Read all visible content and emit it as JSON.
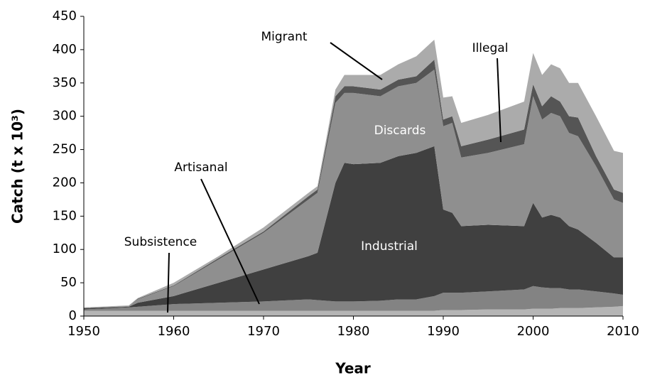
{
  "chart_data": {
    "type": "stacked_area",
    "x_label": "Year",
    "y_label": "Catch (t x 10³)",
    "x": [
      1950,
      1955,
      1956,
      1960,
      1965,
      1970,
      1975,
      1976,
      1978,
      1979,
      1980,
      1983,
      1985,
      1987,
      1989,
      1990,
      1991,
      1992,
      1995,
      1999,
      2000,
      2001,
      2002,
      2003,
      2004,
      2005,
      2007,
      2009,
      2010
    ],
    "series": [
      {
        "name": "Subsistence",
        "color": "#b5b5b5",
        "values": [
          8,
          8,
          8,
          8,
          8,
          8,
          8,
          8,
          8,
          8,
          8,
          8,
          8,
          8,
          8,
          9,
          9,
          9,
          10,
          10,
          11,
          11,
          11,
          12,
          12,
          12,
          13,
          14,
          15
        ]
      },
      {
        "name": "Artisanal",
        "color": "#838383",
        "values": [
          2,
          5,
          6,
          10,
          12,
          14,
          17,
          16,
          14,
          14,
          14,
          15,
          17,
          17,
          22,
          26,
          26,
          26,
          27,
          30,
          34,
          32,
          31,
          30,
          28,
          28,
          24,
          20,
          17
        ]
      },
      {
        "name": "Industrial",
        "color": "#404040",
        "values": [
          2,
          1,
          6,
          12,
          30,
          48,
          65,
          71,
          178,
          208,
          206,
          207,
          215,
          220,
          225,
          125,
          120,
          100,
          100,
          95,
          125,
          105,
          110,
          106,
          95,
          90,
          73,
          54,
          56
        ]
      },
      {
        "name": "Discards",
        "color": "#8f8f8f",
        "values": [
          0,
          1,
          5,
          15,
          35,
          55,
          85,
          90,
          120,
          105,
          107,
          100,
          105,
          105,
          115,
          125,
          135,
          103,
          108,
          123,
          160,
          147,
          153,
          152,
          140,
          140,
          115,
          87,
          82
        ]
      },
      {
        "name": "Illegal",
        "color": "#555555",
        "values": [
          0,
          0,
          1,
          1,
          2,
          2,
          5,
          5,
          10,
          10,
          10,
          10,
          10,
          10,
          15,
          10,
          10,
          17,
          20,
          22,
          18,
          20,
          25,
          22,
          25,
          28,
          15,
          15,
          15
        ]
      },
      {
        "name": "Migrant",
        "color": "#ababab",
        "values": [
          1,
          1,
          1,
          4,
          3,
          6,
          5,
          5,
          10,
          17,
          17,
          22,
          23,
          30,
          30,
          33,
          30,
          35,
          37,
          42,
          47,
          47,
          48,
          50,
          50,
          52,
          60,
          58,
          60
        ]
      }
    ],
    "annotations": [
      "Migrant",
      "Illegal",
      "Discards",
      "Industrial",
      "Artisanal",
      "Subsistence"
    ],
    "xlim": [
      1950,
      2010
    ],
    "xticks": [
      1950,
      1960,
      1970,
      1980,
      1990,
      2000,
      2010
    ],
    "ylim": [
      0,
      450
    ],
    "yticks": [
      0,
      50,
      100,
      150,
      200,
      250,
      300,
      350,
      400,
      450
    ]
  }
}
